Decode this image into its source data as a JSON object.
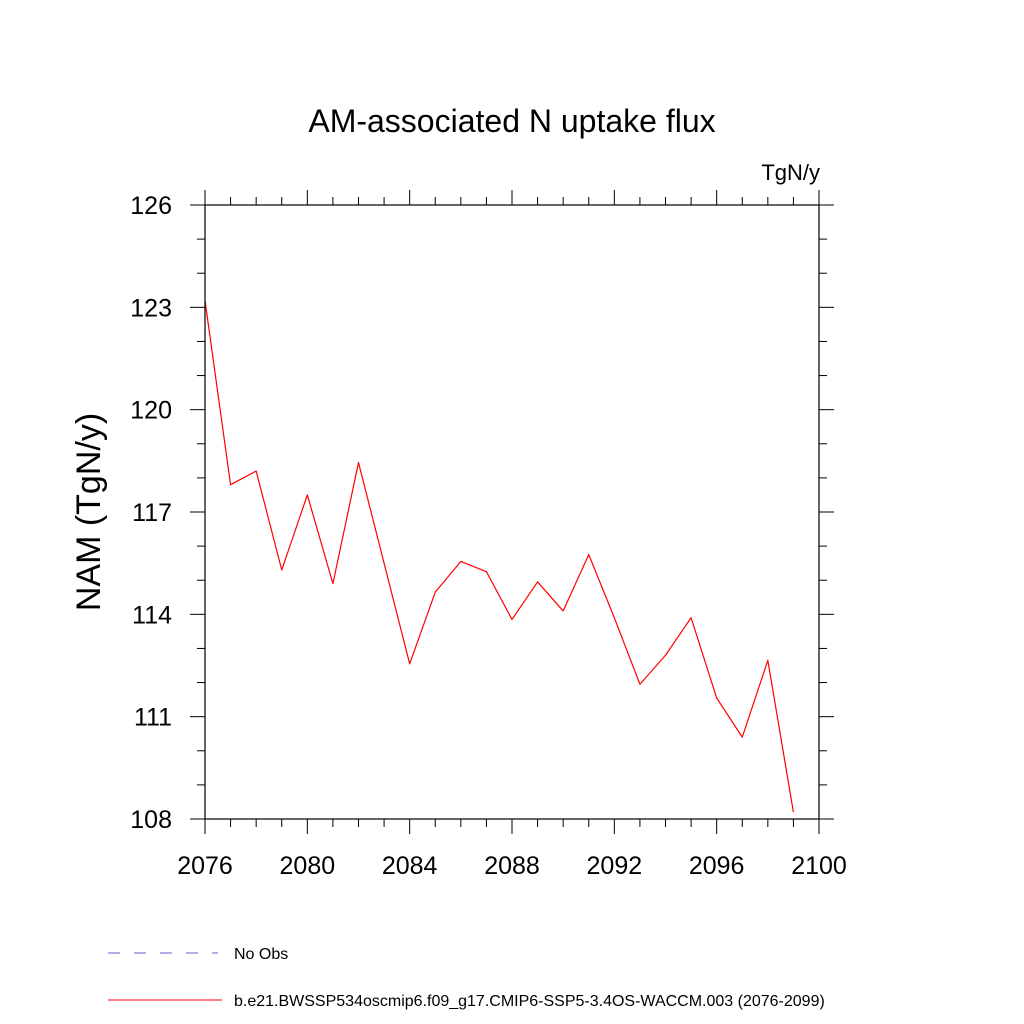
{
  "chart_data": {
    "type": "line",
    "title": "AM-associated N uptake flux",
    "units_label": "TgN/y",
    "xlabel": "",
    "ylabel": "NAM  (TgN/y)",
    "xlim": [
      2076,
      2100
    ],
    "ylim": [
      108,
      126
    ],
    "x_ticks": [
      2076,
      2080,
      2084,
      2088,
      2092,
      2096,
      2100
    ],
    "y_ticks": [
      108,
      111,
      114,
      117,
      120,
      123,
      126
    ],
    "x_minor_step": 1,
    "y_minor_step": 1,
    "series": [
      {
        "name": "b.e21.BWSSP534oscmip6.f09_g17.CMIP6-SSP5-3.4OS-WACCM.003 (2076-2099)",
        "color": "#ff0000",
        "x": [
          2076,
          2077,
          2078,
          2079,
          2080,
          2081,
          2082,
          2083,
          2084,
          2085,
          2086,
          2087,
          2088,
          2089,
          2090,
          2091,
          2092,
          2093,
          2094,
          2095,
          2096,
          2097,
          2098,
          2099
        ],
        "y": [
          123.2,
          117.8,
          118.2,
          115.3,
          117.5,
          114.9,
          118.45,
          115.5,
          112.55,
          114.65,
          115.55,
          115.25,
          113.85,
          114.95,
          114.1,
          115.75,
          113.9,
          111.95,
          112.8,
          113.9,
          111.55,
          110.4,
          112.65,
          108.2
        ]
      }
    ],
    "legend": [
      {
        "label": "No Obs",
        "style": "dashed",
        "color": "#6a5acd"
      },
      {
        "label": "b.e21.BWSSP534oscmip6.f09_g17.CMIP6-SSP5-3.4OS-WACCM.003 (2076-2099)",
        "style": "solid",
        "color": "#ff0000"
      }
    ]
  }
}
